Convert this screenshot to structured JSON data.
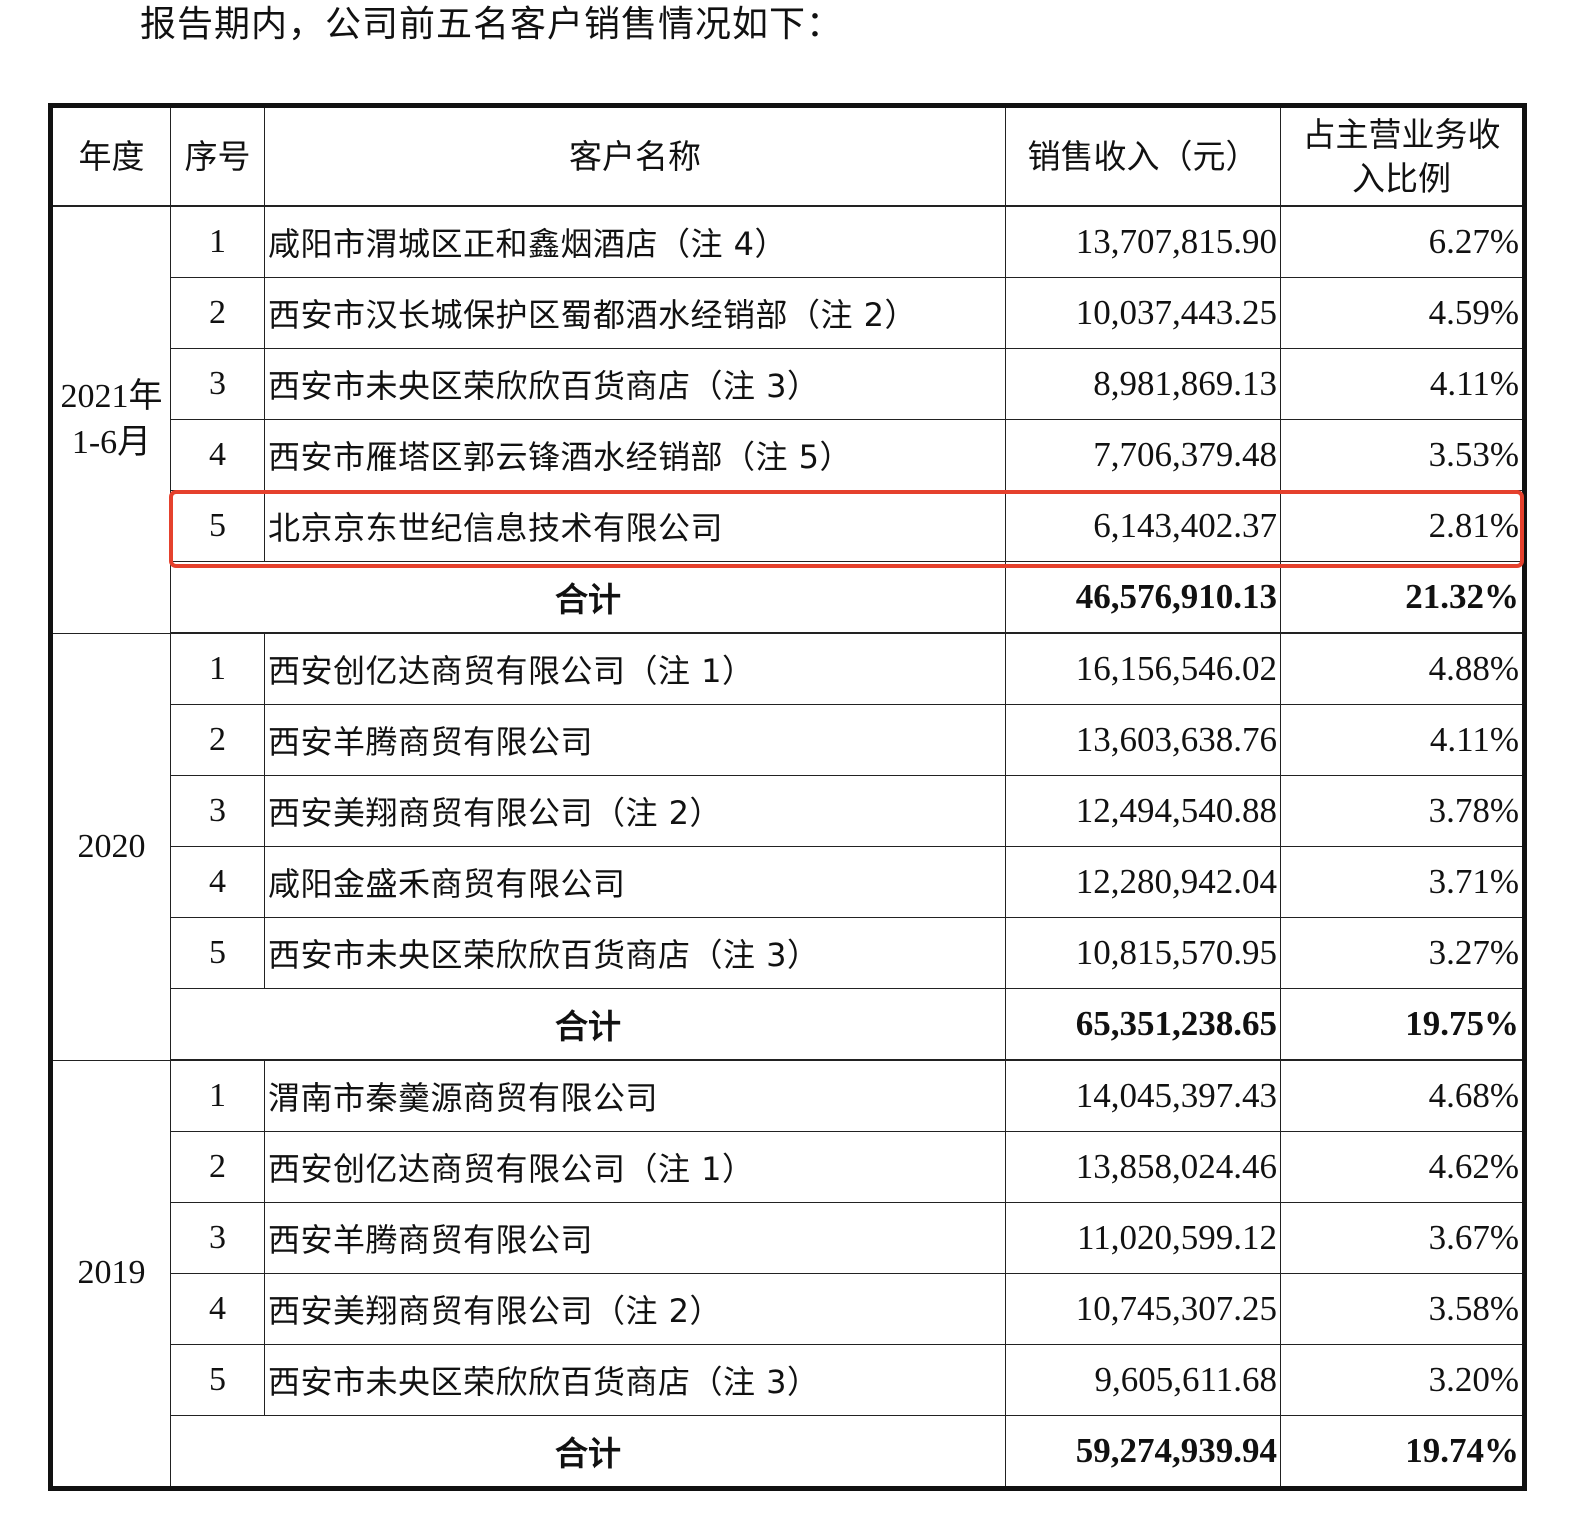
{
  "intro_text": "报告期内，公司前五名客户销售情况如下：",
  "table": {
    "headers": {
      "year": "年度",
      "no": "序号",
      "name": "客户名称",
      "revenue": "销售收入（元）",
      "pct": "占主营业务收入比例"
    },
    "total_label": "合计",
    "groups": [
      {
        "year": "2021年1-6月",
        "rows": [
          {
            "no": "1",
            "name": "咸阳市渭城区正和鑫烟酒店（注 4）",
            "revenue": "13,707,815.90",
            "pct": "6.27%"
          },
          {
            "no": "2",
            "name": "西安市汉长城保护区蜀都酒水经销部（注 2）",
            "revenue": "10,037,443.25",
            "pct": "4.59%"
          },
          {
            "no": "3",
            "name": "西安市未央区荣欣欣百货商店（注 3）",
            "revenue": "8,981,869.13",
            "pct": "4.11%"
          },
          {
            "no": "4",
            "name": "西安市雁塔区郭云锋酒水经销部（注 5）",
            "revenue": "7,706,379.48",
            "pct": "3.53%"
          },
          {
            "no": "5",
            "name": "北京京东世纪信息技术有限公司",
            "revenue": "6,143,402.37",
            "pct": "2.81%",
            "highlighted": true
          }
        ],
        "total": {
          "revenue": "46,576,910.13",
          "pct": "21.32%"
        }
      },
      {
        "year": "2020",
        "rows": [
          {
            "no": "1",
            "name": "西安创亿达商贸有限公司（注 1）",
            "revenue": "16,156,546.02",
            "pct": "4.88%"
          },
          {
            "no": "2",
            "name": "西安羊腾商贸有限公司",
            "revenue": "13,603,638.76",
            "pct": "4.11%"
          },
          {
            "no": "3",
            "name": "西安美翔商贸有限公司（注 2）",
            "revenue": "12,494,540.88",
            "pct": "3.78%"
          },
          {
            "no": "4",
            "name": "咸阳金盛禾商贸有限公司",
            "revenue": "12,280,942.04",
            "pct": "3.71%"
          },
          {
            "no": "5",
            "name": "西安市未央区荣欣欣百货商店（注 3）",
            "revenue": "10,815,570.95",
            "pct": "3.27%"
          }
        ],
        "total": {
          "revenue": "65,351,238.65",
          "pct": "19.75%"
        }
      },
      {
        "year": "2019",
        "rows": [
          {
            "no": "1",
            "name": "渭南市秦羹源商贸有限公司",
            "revenue": "14,045,397.43",
            "pct": "4.68%"
          },
          {
            "no": "2",
            "name": "西安创亿达商贸有限公司（注 1）",
            "revenue": "13,858,024.46",
            "pct": "4.62%"
          },
          {
            "no": "3",
            "name": "西安羊腾商贸有限公司",
            "revenue": "11,020,599.12",
            "pct": "3.67%"
          },
          {
            "no": "4",
            "name": "西安美翔商贸有限公司（注 2）",
            "revenue": "10,745,307.25",
            "pct": "3.58%"
          },
          {
            "no": "5",
            "name": "西安市未央区荣欣欣百货商店（注 3）",
            "revenue": "9,605,611.68",
            "pct": "3.20%"
          }
        ],
        "total": {
          "revenue": "59,274,939.94",
          "pct": "19.74%"
        }
      }
    ]
  },
  "highlight": {
    "color": "#e5412d",
    "target": "table.groups.0.rows.4"
  }
}
